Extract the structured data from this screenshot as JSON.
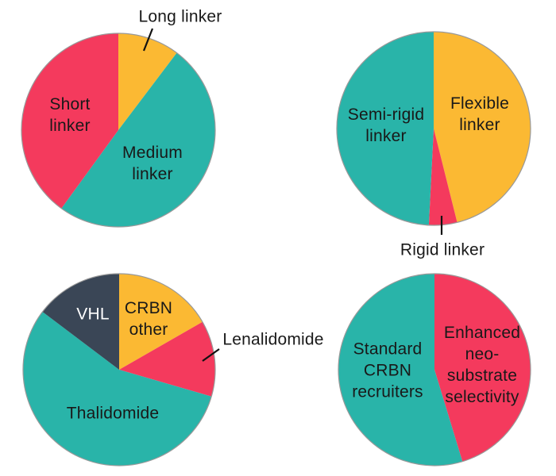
{
  "palette": {
    "red": "#f43a5d",
    "teal": "#29b4a9",
    "yellow": "#fbb933",
    "dark": "#3a4656",
    "outline": "#999999",
    "callout": "#111111",
    "text": "#191919",
    "background": "#ffffff"
  },
  "chart_data": [
    {
      "type": "pie",
      "name": "linker-length-distribution",
      "legend_position": "none",
      "labels_on_slices": true,
      "slices": [
        {
          "label": "Long linker",
          "display": "Long linker",
          "pct": 10.3,
          "color": "yellow",
          "callout": true
        },
        {
          "label": "Medium linker",
          "display": "Medium\nlinker",
          "pct": 49.7,
          "color": "teal"
        },
        {
          "label": "Short linker",
          "display": "Short\nlinker",
          "pct": 40.0,
          "color": "red"
        }
      ]
    },
    {
      "type": "pie",
      "name": "linker-rigidity-distribution",
      "legend_position": "none",
      "labels_on_slices": true,
      "slices": [
        {
          "label": "Flexible linker",
          "display": "Flexible\nlinker",
          "pct": 46.1,
          "color": "yellow"
        },
        {
          "label": "Rigid linker",
          "display": "Rigid linker",
          "pct": 4.7,
          "color": "red",
          "callout": true
        },
        {
          "label": "Semi-rigid linker",
          "display": "Semi-rigid\nlinker",
          "pct": 49.2,
          "color": "teal"
        }
      ]
    },
    {
      "type": "pie",
      "name": "e3-ligase-recruiter-distribution",
      "legend_position": "none",
      "labels_on_slices": true,
      "slices": [
        {
          "label": "CRBN other",
          "display": "CRBN\nother",
          "pct": 16.7,
          "color": "yellow"
        },
        {
          "label": "Lenalidomide",
          "display": "Lenalidomide",
          "pct": 12.8,
          "color": "red",
          "callout": true
        },
        {
          "label": "Thalidomide",
          "display": "Thalidomide",
          "pct": 55.8,
          "color": "teal"
        },
        {
          "label": "VHL",
          "display": "VHL",
          "pct": 14.7,
          "color": "dark",
          "label_color": "#ffffff"
        }
      ]
    },
    {
      "type": "pie",
      "name": "crbn-recruiter-selectivity",
      "legend_position": "none",
      "labels_on_slices": true,
      "slices": [
        {
          "label": "Enhanced neo-substrate selectivity",
          "display": "Enhanced\nneo-\nsubstrate\nselectivity",
          "pct": 45.3,
          "color": "red"
        },
        {
          "label": "Standard CRBN recruiters",
          "display": "Standard\nCRBN\nrecruiters",
          "pct": 54.7,
          "color": "teal"
        }
      ]
    }
  ]
}
